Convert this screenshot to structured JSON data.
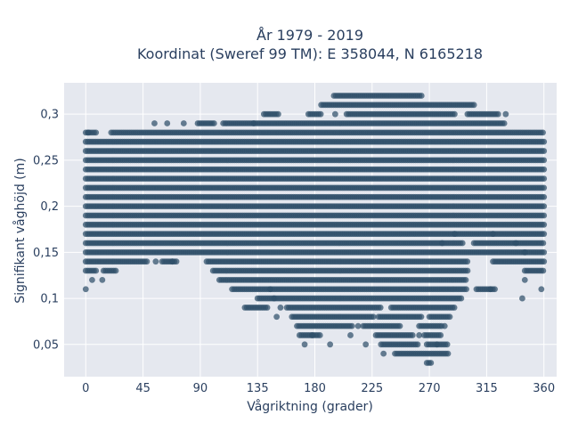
{
  "chart_data": {
    "type": "scatter",
    "title_line1": "År 1979 - 2019",
    "title_line2": "Koordinat (Sweref 99 TM): E 358044, N 6165218",
    "xlabel": "Vågriktning (grader)",
    "ylabel": "Signifikant våghöjd (m)",
    "xlim": [
      -17,
      370
    ],
    "ylim": [
      0.015,
      0.334
    ],
    "x_ticks": [
      0,
      45,
      90,
      135,
      180,
      225,
      270,
      315,
      360
    ],
    "x_tick_labels": [
      "0",
      "45",
      "90",
      "135",
      "180",
      "225",
      "270",
      "315",
      "360"
    ],
    "y_ticks": [
      0.05,
      0.1,
      0.15,
      0.2,
      0.25,
      0.3
    ],
    "y_tick_labels": [
      "0,05",
      "0,1",
      "0,15",
      "0,2",
      "0,25",
      "0,3"
    ],
    "grid": true,
    "marker_color": "#2f4f69",
    "plot_background": "#e5e8ef",
    "series": [
      {
        "rows": [
          {
            "y": 0.03,
            "segments": [
              [
                268,
                272
              ]
            ]
          },
          {
            "y": 0.04,
            "segments": [
              [
                243,
                285
              ]
            ]
          },
          {
            "y": 0.05,
            "segments": [
              [
                232,
                262
              ],
              [
                268,
                284
              ]
            ]
          },
          {
            "y": 0.06,
            "segments": [
              [
                168,
                185
              ],
              [
                228,
                258
              ],
              [
                266,
                280
              ]
            ]
          },
          {
            "y": 0.07,
            "segments": [
              [
                166,
                210
              ],
              [
                218,
                248
              ],
              [
                262,
                280
              ]
            ]
          },
          {
            "y": 0.08,
            "segments": [
              [
                162,
                226
              ],
              [
                230,
                265
              ],
              [
                270,
                286
              ]
            ]
          },
          {
            "y": 0.09,
            "segments": [
              [
                125,
                143
              ],
              [
                158,
                232
              ],
              [
                240,
                290
              ]
            ]
          },
          {
            "y": 0.1,
            "segments": [
              [
                135,
                295
              ]
            ]
          },
          {
            "y": 0.11,
            "segments": [
              [
                115,
                300
              ],
              [
                307,
                322
              ]
            ]
          },
          {
            "y": 0.12,
            "segments": [
              [
                105,
                300
              ]
            ]
          },
          {
            "y": 0.13,
            "segments": [
              [
                0,
                8
              ],
              [
                14,
                25
              ],
              [
                100,
                300
              ],
              [
                345,
                360
              ]
            ]
          },
          {
            "y": 0.14,
            "segments": [
              [
                0,
                48
              ],
              [
                60,
                72
              ],
              [
                95,
                300
              ],
              [
                320,
                360
              ]
            ]
          },
          {
            "y": 0.15,
            "segments": [
              [
                0,
                360
              ]
            ]
          },
          {
            "y": 0.16,
            "segments": [
              [
                0,
                296
              ],
              [
                305,
                360
              ]
            ]
          },
          {
            "y": 0.17,
            "segments": [
              [
                0,
                360
              ]
            ]
          },
          {
            "y": 0.18,
            "segments": [
              [
                0,
                360
              ]
            ]
          },
          {
            "y": 0.19,
            "segments": [
              [
                0,
                360
              ]
            ]
          },
          {
            "y": 0.2,
            "segments": [
              [
                0,
                360
              ]
            ]
          },
          {
            "y": 0.21,
            "segments": [
              [
                0,
                360
              ]
            ]
          },
          {
            "y": 0.22,
            "segments": [
              [
                0,
                360
              ]
            ]
          },
          {
            "y": 0.23,
            "segments": [
              [
                0,
                360
              ]
            ]
          },
          {
            "y": 0.24,
            "segments": [
              [
                0,
                360
              ]
            ]
          },
          {
            "y": 0.25,
            "segments": [
              [
                0,
                360
              ]
            ]
          },
          {
            "y": 0.26,
            "segments": [
              [
                0,
                360
              ]
            ]
          },
          {
            "y": 0.27,
            "segments": [
              [
                0,
                360
              ]
            ]
          },
          {
            "y": 0.28,
            "segments": [
              [
                0,
                8
              ],
              [
                20,
                360
              ]
            ]
          },
          {
            "y": 0.29,
            "segments": [
              [
                88,
                102
              ],
              [
                108,
                330
              ]
            ]
          },
          {
            "y": 0.3,
            "segments": [
              [
                140,
                152
              ],
              [
                175,
                185
              ],
              [
                205,
                290
              ],
              [
                300,
                325
              ]
            ]
          },
          {
            "y": 0.31,
            "segments": [
              [
                185,
                305
              ]
            ]
          },
          {
            "y": 0.32,
            "segments": [
              [
                195,
                265
              ]
            ]
          }
        ],
        "outliers": [
          [
            0,
            0.11
          ],
          [
            5,
            0.12
          ],
          [
            13,
            0.12
          ],
          [
            2,
            0.28
          ],
          [
            54,
            0.29
          ],
          [
            64,
            0.29
          ],
          [
            77,
            0.29
          ],
          [
            55,
            0.14
          ],
          [
            68,
            0.14
          ],
          [
            132,
            0.29
          ],
          [
            196,
            0.3
          ],
          [
            330,
            0.3
          ],
          [
            145,
            0.11
          ],
          [
            148,
            0.1
          ],
          [
            150,
            0.08
          ],
          [
            153,
            0.09
          ],
          [
            318,
            0.11
          ],
          [
            345,
            0.12
          ],
          [
            343,
            0.1
          ],
          [
            358,
            0.11
          ],
          [
            338,
            0.16
          ],
          [
            345,
            0.15
          ],
          [
            280,
            0.16
          ],
          [
            290,
            0.17
          ],
          [
            320,
            0.17
          ],
          [
            172,
            0.05
          ],
          [
            178,
            0.06
          ],
          [
            192,
            0.05
          ],
          [
            208,
            0.06
          ],
          [
            214,
            0.07
          ],
          [
            220,
            0.05
          ],
          [
            234,
            0.04
          ],
          [
            262,
            0.06
          ],
          [
            276,
            0.05
          ],
          [
            282,
            0.07
          ]
        ]
      }
    ]
  }
}
